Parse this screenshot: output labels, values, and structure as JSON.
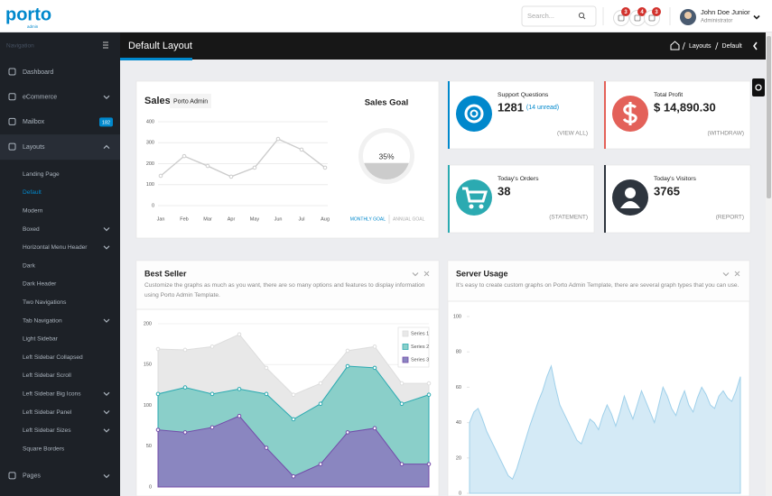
{
  "header": {
    "logo": "porto",
    "logo_sub": "admin",
    "search_placeholder": "Search...",
    "notifications": [
      3,
      4,
      3
    ],
    "user_name": "John Doe Junior",
    "user_role": "Administrator"
  },
  "sidebar": {
    "title": "Navigation",
    "items": [
      {
        "label": "Dashboard",
        "submenu": false
      },
      {
        "label": "eCommerce",
        "submenu": true
      },
      {
        "label": "Mailbox",
        "submenu": false,
        "badge": 182
      },
      {
        "label": "Layouts",
        "submenu": true,
        "open": true,
        "children": [
          {
            "label": "Landing Page",
            "submenu": false
          },
          {
            "label": "Default",
            "submenu": false,
            "active": true
          },
          {
            "label": "Modern",
            "submenu": false
          },
          {
            "label": "Boxed",
            "submenu": true
          },
          {
            "label": "Horizontal Menu Header",
            "submenu": true
          },
          {
            "label": "Dark",
            "submenu": false
          },
          {
            "label": "Dark Header",
            "submenu": false
          },
          {
            "label": "Two Navigations",
            "submenu": false
          },
          {
            "label": "Tab Navigation",
            "submenu": true
          },
          {
            "label": "Light Sidebar",
            "submenu": false
          },
          {
            "label": "Left Sidebar Collapsed",
            "submenu": false
          },
          {
            "label": "Left Sidebar Scroll",
            "submenu": false
          },
          {
            "label": "Left Sidebar Big Icons",
            "submenu": true
          },
          {
            "label": "Left Sidebar Panel",
            "submenu": true
          },
          {
            "label": "Left Sidebar Sizes",
            "submenu": true
          },
          {
            "label": "Square Borders",
            "submenu": false
          }
        ]
      },
      {
        "label": "Pages",
        "submenu": true
      }
    ]
  },
  "page_header": {
    "title": "Default Layout",
    "breadcrumb": [
      "Layouts",
      "Default"
    ]
  },
  "sales": {
    "title": "Sales:",
    "selector": "Porto Admin",
    "chart": {
      "type": "line",
      "categories": [
        "Jan",
        "Feb",
        "Mar",
        "Apr",
        "May",
        "Jun",
        "Jul",
        "Aug"
      ],
      "values": [
        142,
        236,
        189,
        138,
        181,
        318,
        267,
        181
      ],
      "color": "#cccccc",
      "ylim": [
        0,
        400
      ],
      "yticks": [
        0,
        100,
        200,
        300,
        400
      ],
      "grid": true
    },
    "goal": {
      "title": "Sales Goal",
      "value": 35,
      "label": "35%",
      "color": "#cccccc",
      "tabs": [
        "MONTHLY GOAL",
        "ANNUAL GOAL"
      ]
    }
  },
  "widgets": [
    {
      "title": "Support Questions",
      "value": 1281,
      "note": "(14 unread)",
      "link": "(VIEW ALL)",
      "color": "#0088cc"
    },
    {
      "title": "Total Profit",
      "value": "$ 14,890.30",
      "link": "(WITHDRAW)",
      "color": "#e36159"
    },
    {
      "title": "Today's Orders",
      "value": 38,
      "link": "(STATEMENT)",
      "color": "#2baab1"
    },
    {
      "title": "Today's Visitors",
      "value": 3765,
      "link": "(REPORT)",
      "color": "#2e353e"
    }
  ],
  "best_seller": {
    "title": "Best Seller",
    "description": "Customize the graphs as much as you want, there are so many options and features to display information using Porto Admin Template.",
    "chart": {
      "type": "area",
      "series": [
        {
          "name": "Series 1",
          "color": "#dddddd",
          "values": [
            169,
            168,
            172,
            187,
            146,
            113,
            127,
            167,
            172,
            127,
            127
          ]
        },
        {
          "name": "Series 2",
          "color": "#2baab1",
          "values": [
            114,
            122,
            114,
            120,
            114,
            83,
            102,
            148,
            146,
            102,
            113
          ]
        },
        {
          "name": "Series 3",
          "color": "#734ba9",
          "values": [
            70,
            67,
            73,
            87,
            48,
            13,
            28,
            67,
            72,
            28,
            28
          ]
        }
      ],
      "ylim": [
        0,
        200
      ],
      "yticks": [
        0,
        50,
        100,
        150,
        200
      ],
      "grid": true
    }
  },
  "server_usage": {
    "title": "Server Usage",
    "description": "It's easy to create custom graphs on Porto Admin Template, there are several graph types that you can use.",
    "chart": {
      "type": "area",
      "color": "#9fd0ea",
      "values": [
        40,
        46,
        48,
        42,
        35,
        30,
        25,
        20,
        15,
        10,
        8,
        14,
        22,
        30,
        38,
        45,
        52,
        58,
        66,
        72,
        60,
        50,
        45,
        40,
        35,
        30,
        28,
        35,
        42,
        40,
        36,
        44,
        50,
        45,
        38,
        46,
        55,
        48,
        42,
        50,
        58,
        52,
        46,
        40,
        50,
        60,
        55,
        48,
        44,
        52,
        58,
        50,
        46,
        54,
        60,
        56,
        50,
        48,
        55,
        58,
        54,
        52,
        58,
        66
      ],
      "ylim": [
        0,
        100
      ],
      "yticks": [
        0,
        20,
        40,
        60,
        80,
        100
      ],
      "grid": false
    }
  }
}
